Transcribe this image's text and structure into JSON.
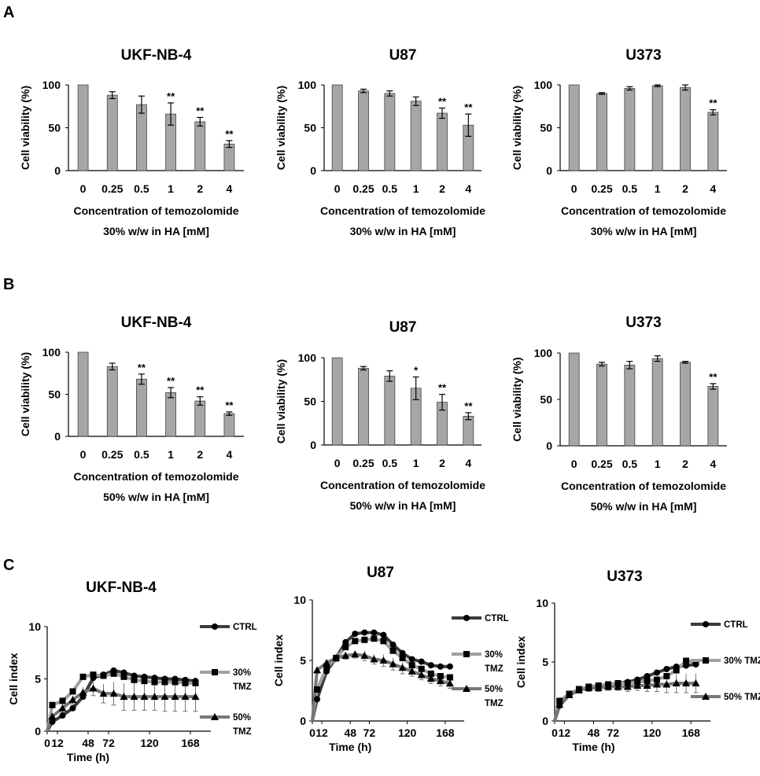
{
  "panel_letters": [
    "A",
    "B",
    "C"
  ],
  "chart_data": [
    {
      "type": "bar",
      "panel": "A",
      "title": "UKF-NB-4",
      "ylabel": "Cell viability (%)",
      "xlabel": [
        "Concentration of temozolomide",
        "30% w/w in HA [mM]"
      ],
      "categories": [
        "0",
        "0.25",
        "0.5",
        "1",
        "2",
        "4"
      ],
      "values": [
        100,
        88,
        77,
        66,
        57,
        31
      ],
      "errors": [
        0,
        4,
        10,
        13,
        5,
        4
      ],
      "significance": [
        "",
        "",
        "",
        "**",
        "**",
        "**"
      ],
      "ylim": [
        0,
        100
      ],
      "yticks": [
        0,
        50,
        100
      ]
    },
    {
      "type": "bar",
      "panel": "A",
      "title": "U87",
      "ylabel": "Cell viability (%)",
      "xlabel": [
        "Concentration of temozolomide",
        "30% w/w in HA [mM]"
      ],
      "categories": [
        "0",
        "0.25",
        "0.5",
        "1",
        "2",
        "4"
      ],
      "values": [
        100,
        93,
        90,
        81,
        67,
        53
      ],
      "errors": [
        0,
        2,
        3,
        5,
        6,
        13
      ],
      "significance": [
        "",
        "",
        "",
        "",
        "**",
        "**"
      ],
      "ylim": [
        0,
        100
      ],
      "yticks": [
        0,
        50,
        100
      ]
    },
    {
      "type": "bar",
      "panel": "A",
      "title": "U373",
      "ylabel": "Cell viability (%)",
      "xlabel": [
        "Concentration of temozolomide",
        "30% w/w in HA [mM]"
      ],
      "categories": [
        "0",
        "0.25",
        "0.5",
        "1",
        "2",
        "4"
      ],
      "values": [
        100,
        90,
        96,
        99,
        97,
        68
      ],
      "errors": [
        0,
        1,
        2,
        1,
        3,
        3
      ],
      "significance": [
        "",
        "",
        "",
        "",
        "",
        "**"
      ],
      "ylim": [
        0,
        100
      ],
      "yticks": [
        0,
        50,
        100
      ]
    },
    {
      "type": "bar",
      "panel": "B",
      "title": "UKF-NB-4",
      "ylabel": "Cell viability (%)",
      "xlabel": [
        "Concentration of temozolomide",
        "50% w/w in HA [mM]"
      ],
      "categories": [
        "0",
        "0.25",
        "0.5",
        "1",
        "2",
        "4"
      ],
      "values": [
        100,
        83,
        68,
        52,
        42,
        27
      ],
      "errors": [
        0,
        4,
        6,
        6,
        5,
        2
      ],
      "significance": [
        "",
        "",
        "**",
        "**",
        "**",
        "**"
      ],
      "ylim": [
        0,
        100
      ],
      "yticks": [
        0,
        50,
        100
      ]
    },
    {
      "type": "bar",
      "panel": "B",
      "title": "U87",
      "ylabel": "Cell viability (%)",
      "xlabel": [
        "Concentration of temozolomide",
        "50% w/w in HA [mM]"
      ],
      "categories": [
        "0",
        "0.25",
        "0.5",
        "1",
        "2",
        "4"
      ],
      "values": [
        100,
        88,
        79,
        65,
        49,
        33
      ],
      "errors": [
        0,
        2,
        6,
        13,
        9,
        4
      ],
      "significance": [
        "",
        "",
        "",
        "*",
        "**",
        "**"
      ],
      "ylim": [
        0,
        100
      ],
      "yticks": [
        0,
        50,
        100
      ]
    },
    {
      "type": "bar",
      "panel": "B",
      "title": "U373",
      "ylabel": "Cell viability (%)",
      "xlabel": [
        "Concentration of temozolomide",
        "50% w/w in HA [mM]"
      ],
      "categories": [
        "0",
        "0.25",
        "0.5",
        "1",
        "2",
        "4"
      ],
      "values": [
        100,
        88,
        87,
        94,
        90,
        64
      ],
      "errors": [
        0,
        2,
        4,
        3,
        1,
        3
      ],
      "significance": [
        "",
        "",
        "",
        "",
        "",
        "**"
      ],
      "ylim": [
        0,
        100
      ],
      "yticks": [
        0,
        50,
        100
      ]
    },
    {
      "type": "line",
      "panel": "C",
      "title": "UKF-NB-4",
      "ylabel": "Cell index",
      "xlabel": "Time (h)",
      "xlim": [
        0,
        192
      ],
      "ylim": [
        0,
        10
      ],
      "xticks": [
        0,
        12,
        48,
        72,
        120,
        168
      ],
      "yticks": [
        0,
        5,
        10
      ],
      "x": [
        0,
        6,
        18,
        30,
        42,
        54,
        66,
        78,
        90,
        102,
        114,
        126,
        138,
        150,
        162,
        174
      ],
      "series": [
        {
          "name": "CTRL",
          "color": "#3c3c3c",
          "marker": "circle",
          "values": [
            0,
            0.9,
            1.5,
            2.2,
            3.3,
            5.1,
            5.4,
            5.8,
            5.6,
            5.3,
            5.2,
            5.1,
            5.0,
            5.0,
            4.9,
            4.8
          ],
          "errors": []
        },
        {
          "name": "30% TMZ",
          "color": "#a0a0a0",
          "marker": "square",
          "values": [
            0,
            2.5,
            2.9,
            3.8,
            5.2,
            5.4,
            5.3,
            5.5,
            5.2,
            4.9,
            4.8,
            4.7,
            4.7,
            4.7,
            4.6,
            4.6
          ],
          "errors": []
        },
        {
          "name": "50% TMZ",
          "color": "#787878",
          "marker": "triangle",
          "values": [
            0,
            1.4,
            2.2,
            3.0,
            3.7,
            4.1,
            3.6,
            3.6,
            3.3,
            3.3,
            3.3,
            3.3,
            3.3,
            3.3,
            3.3,
            3.3
          ],
          "errors": [
            0,
            0.3,
            0.4,
            0.4,
            0.5,
            0.7,
            0.9,
            1.1,
            1.3,
            1.3,
            1.3,
            1.3,
            1.4,
            1.4,
            1.4,
            1.4
          ]
        }
      ]
    },
    {
      "type": "line",
      "panel": "C",
      "title": "U87",
      "ylabel": "Cell index",
      "xlabel": "Time (h)",
      "xlim": [
        0,
        192
      ],
      "ylim": [
        0,
        10
      ],
      "xticks": [
        0,
        12,
        48,
        72,
        120,
        168
      ],
      "yticks": [
        0,
        5,
        10
      ],
      "x": [
        0,
        6,
        18,
        30,
        42,
        54,
        66,
        78,
        90,
        102,
        114,
        126,
        138,
        150,
        162,
        174
      ],
      "series": [
        {
          "name": "CTRL",
          "color": "#3c3c3c",
          "marker": "circle",
          "values": [
            0,
            1.8,
            4.1,
            5.2,
            6.5,
            7.2,
            7.3,
            7.3,
            7.1,
            6.3,
            5.6,
            5.1,
            4.9,
            4.6,
            4.5,
            4.5
          ],
          "errors": []
        },
        {
          "name": "30% TMZ",
          "color": "#a0a0a0",
          "marker": "square",
          "values": [
            0,
            2.6,
            4.4,
            5.2,
            6.1,
            6.6,
            6.7,
            6.8,
            6.6,
            5.8,
            5.2,
            4.6,
            4.3,
            3.9,
            3.7,
            3.6
          ],
          "errors": []
        },
        {
          "name": "50% TMZ",
          "color": "#787878",
          "marker": "triangle",
          "values": [
            0,
            4.2,
            4.8,
            5.2,
            5.4,
            5.5,
            5.4,
            5.1,
            5.0,
            4.7,
            4.4,
            4.1,
            3.8,
            3.5,
            3.3,
            3.1
          ],
          "errors": [
            0,
            0.2,
            0.3,
            0.3,
            0.3,
            0.3,
            0.4,
            0.4,
            0.5,
            0.5,
            0.5,
            0.4,
            0.4,
            0.4,
            0.4,
            0.4
          ]
        }
      ]
    },
    {
      "type": "line",
      "panel": "C",
      "title": "U373",
      "ylabel": "Cell index",
      "xlabel": "Time (h)",
      "xlim": [
        0,
        192
      ],
      "ylim": [
        0,
        10
      ],
      "xticks": [
        0,
        12,
        48,
        72,
        120,
        168
      ],
      "yticks": [
        0,
        5,
        10
      ],
      "x": [
        0,
        6,
        18,
        30,
        42,
        54,
        66,
        78,
        90,
        102,
        114,
        126,
        138,
        150,
        162,
        174
      ],
      "series": [
        {
          "name": "CTRL",
          "color": "#3c3c3c",
          "marker": "circle",
          "values": [
            0,
            1.3,
            2.2,
            2.6,
            2.9,
            3.0,
            3.1,
            3.2,
            3.3,
            3.5,
            3.8,
            4.1,
            4.4,
            4.6,
            4.7,
            4.8
          ],
          "errors": []
        },
        {
          "name": "30% TMZ",
          "color": "#a0a0a0",
          "marker": "square",
          "values": [
            0,
            1.7,
            2.3,
            2.7,
            2.9,
            3.0,
            3.1,
            3.2,
            3.2,
            3.3,
            3.4,
            3.5,
            3.8,
            4.3,
            5.1,
            5.0
          ],
          "errors": []
        },
        {
          "name": "50% TMZ",
          "color": "#787878",
          "marker": "triangle",
          "values": [
            0,
            1.4,
            2.2,
            2.6,
            2.8,
            2.8,
            2.9,
            2.9,
            2.9,
            3.0,
            3.0,
            3.1,
            3.1,
            3.2,
            3.2,
            3.2
          ],
          "errors": [
            0,
            0.2,
            0.2,
            0.2,
            0.3,
            0.3,
            0.3,
            0.3,
            0.4,
            0.4,
            0.5,
            0.6,
            0.7,
            0.8,
            0.8,
            0.8
          ]
        }
      ]
    }
  ]
}
